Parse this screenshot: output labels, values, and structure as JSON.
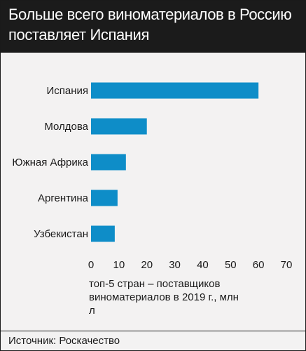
{
  "title": "Больше всего виноматериалов в Россию поставляет Испания",
  "caption": "топ-5 стран – поставщиков виноматериалов в 2019 г., млн л",
  "source": "Источник: Роскачество",
  "colors": {
    "bar": "#0e8dc8",
    "header_bg": "#1b1b1b",
    "panel_bg": "#f3f2f2"
  },
  "chart_data": {
    "type": "bar",
    "orientation": "horizontal",
    "categories": [
      "Испания",
      "Молдова",
      "Южная Африка",
      "Аргентина",
      "Узбекистан"
    ],
    "values": [
      60,
      20,
      12.5,
      9.5,
      8.5
    ],
    "xlim": [
      0,
      70
    ],
    "xticks": [
      "0",
      "10",
      "20",
      "30",
      "40",
      "50",
      "60",
      "70"
    ],
    "grid": false,
    "legend": "none"
  }
}
